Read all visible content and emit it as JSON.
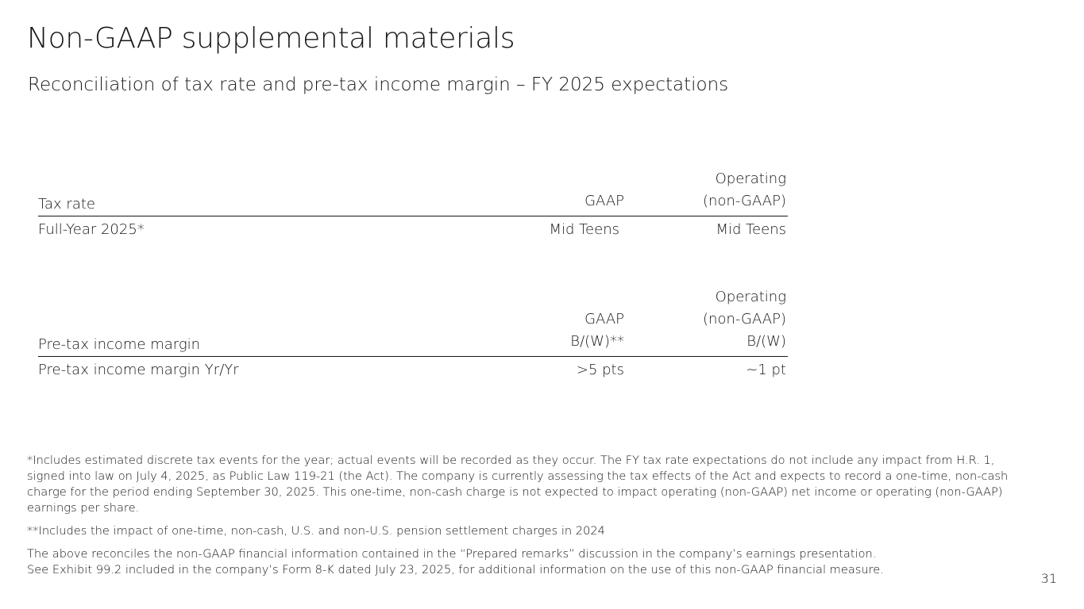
{
  "title": "Non-GAAP supplemental materials",
  "subtitle": "Reconciliation of tax rate and pre-tax income margin – FY 2025 expectations",
  "tax_table": {
    "header": {
      "label": "Tax rate",
      "col1": [
        "GAAP"
      ],
      "col2": [
        "Operating",
        "(non-GAAP)"
      ]
    },
    "rows": [
      {
        "label": "Full-Year 2025*",
        "col1": "Mid Teens",
        "col2": "Mid Teens"
      }
    ]
  },
  "margin_table": {
    "header": {
      "label": "Pre-tax income margin",
      "col1": [
        "GAAP",
        "B/(W)**"
      ],
      "col2": [
        "Operating",
        "(non-GAAP)",
        "B/(W)"
      ]
    },
    "rows": [
      {
        "label": "Pre-tax income margin Yr/Yr",
        "col1": ">5 pts",
        "col2": "~1 pt"
      }
    ]
  },
  "footnotes": {
    "note1": "*Includes estimated discrete tax events for the year; actual events will be recorded as they occur. The FY tax rate expectations do not include any impact from H.R. 1, signed into law on July 4, 2025, as Public Law 119-21 (the Act). The company is currently assessing the tax effects of the Act and expects to record a one-time, non-cash charge for the period ending September 30, 2025. This one-time, non-cash charge is not expected to impact operating (non-GAAP) net income or operating (non-GAAP) earnings per share.",
    "note2": "**Includes the impact of one-time, non-cash, U.S. and non-U.S. pension settlement charges in 2024",
    "note3_line1": "The above reconciles the non-GAAP financial information contained in the “Prepared remarks” discussion in the company’s earnings presentation.",
    "note3_line2": "See Exhibit 99.2 included in the company’s Form 8-K dated July 23, 2025, for additional information on the use of this non-GAAP financial measure."
  },
  "page_number": "31"
}
